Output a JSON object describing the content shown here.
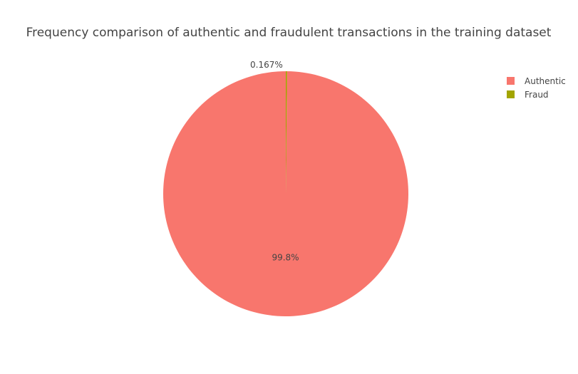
{
  "chart_data": {
    "type": "pie",
    "title": "Frequency comparison of authentic and fraudulent transactions in the training dataset",
    "categories": [
      "Authentic",
      "Fraud"
    ],
    "values": [
      99.833,
      0.167
    ],
    "labels": [
      "99.8%",
      "0.167%"
    ],
    "colors": [
      "#f8766d",
      "#a3a500"
    ],
    "legend_position": "top-right"
  }
}
